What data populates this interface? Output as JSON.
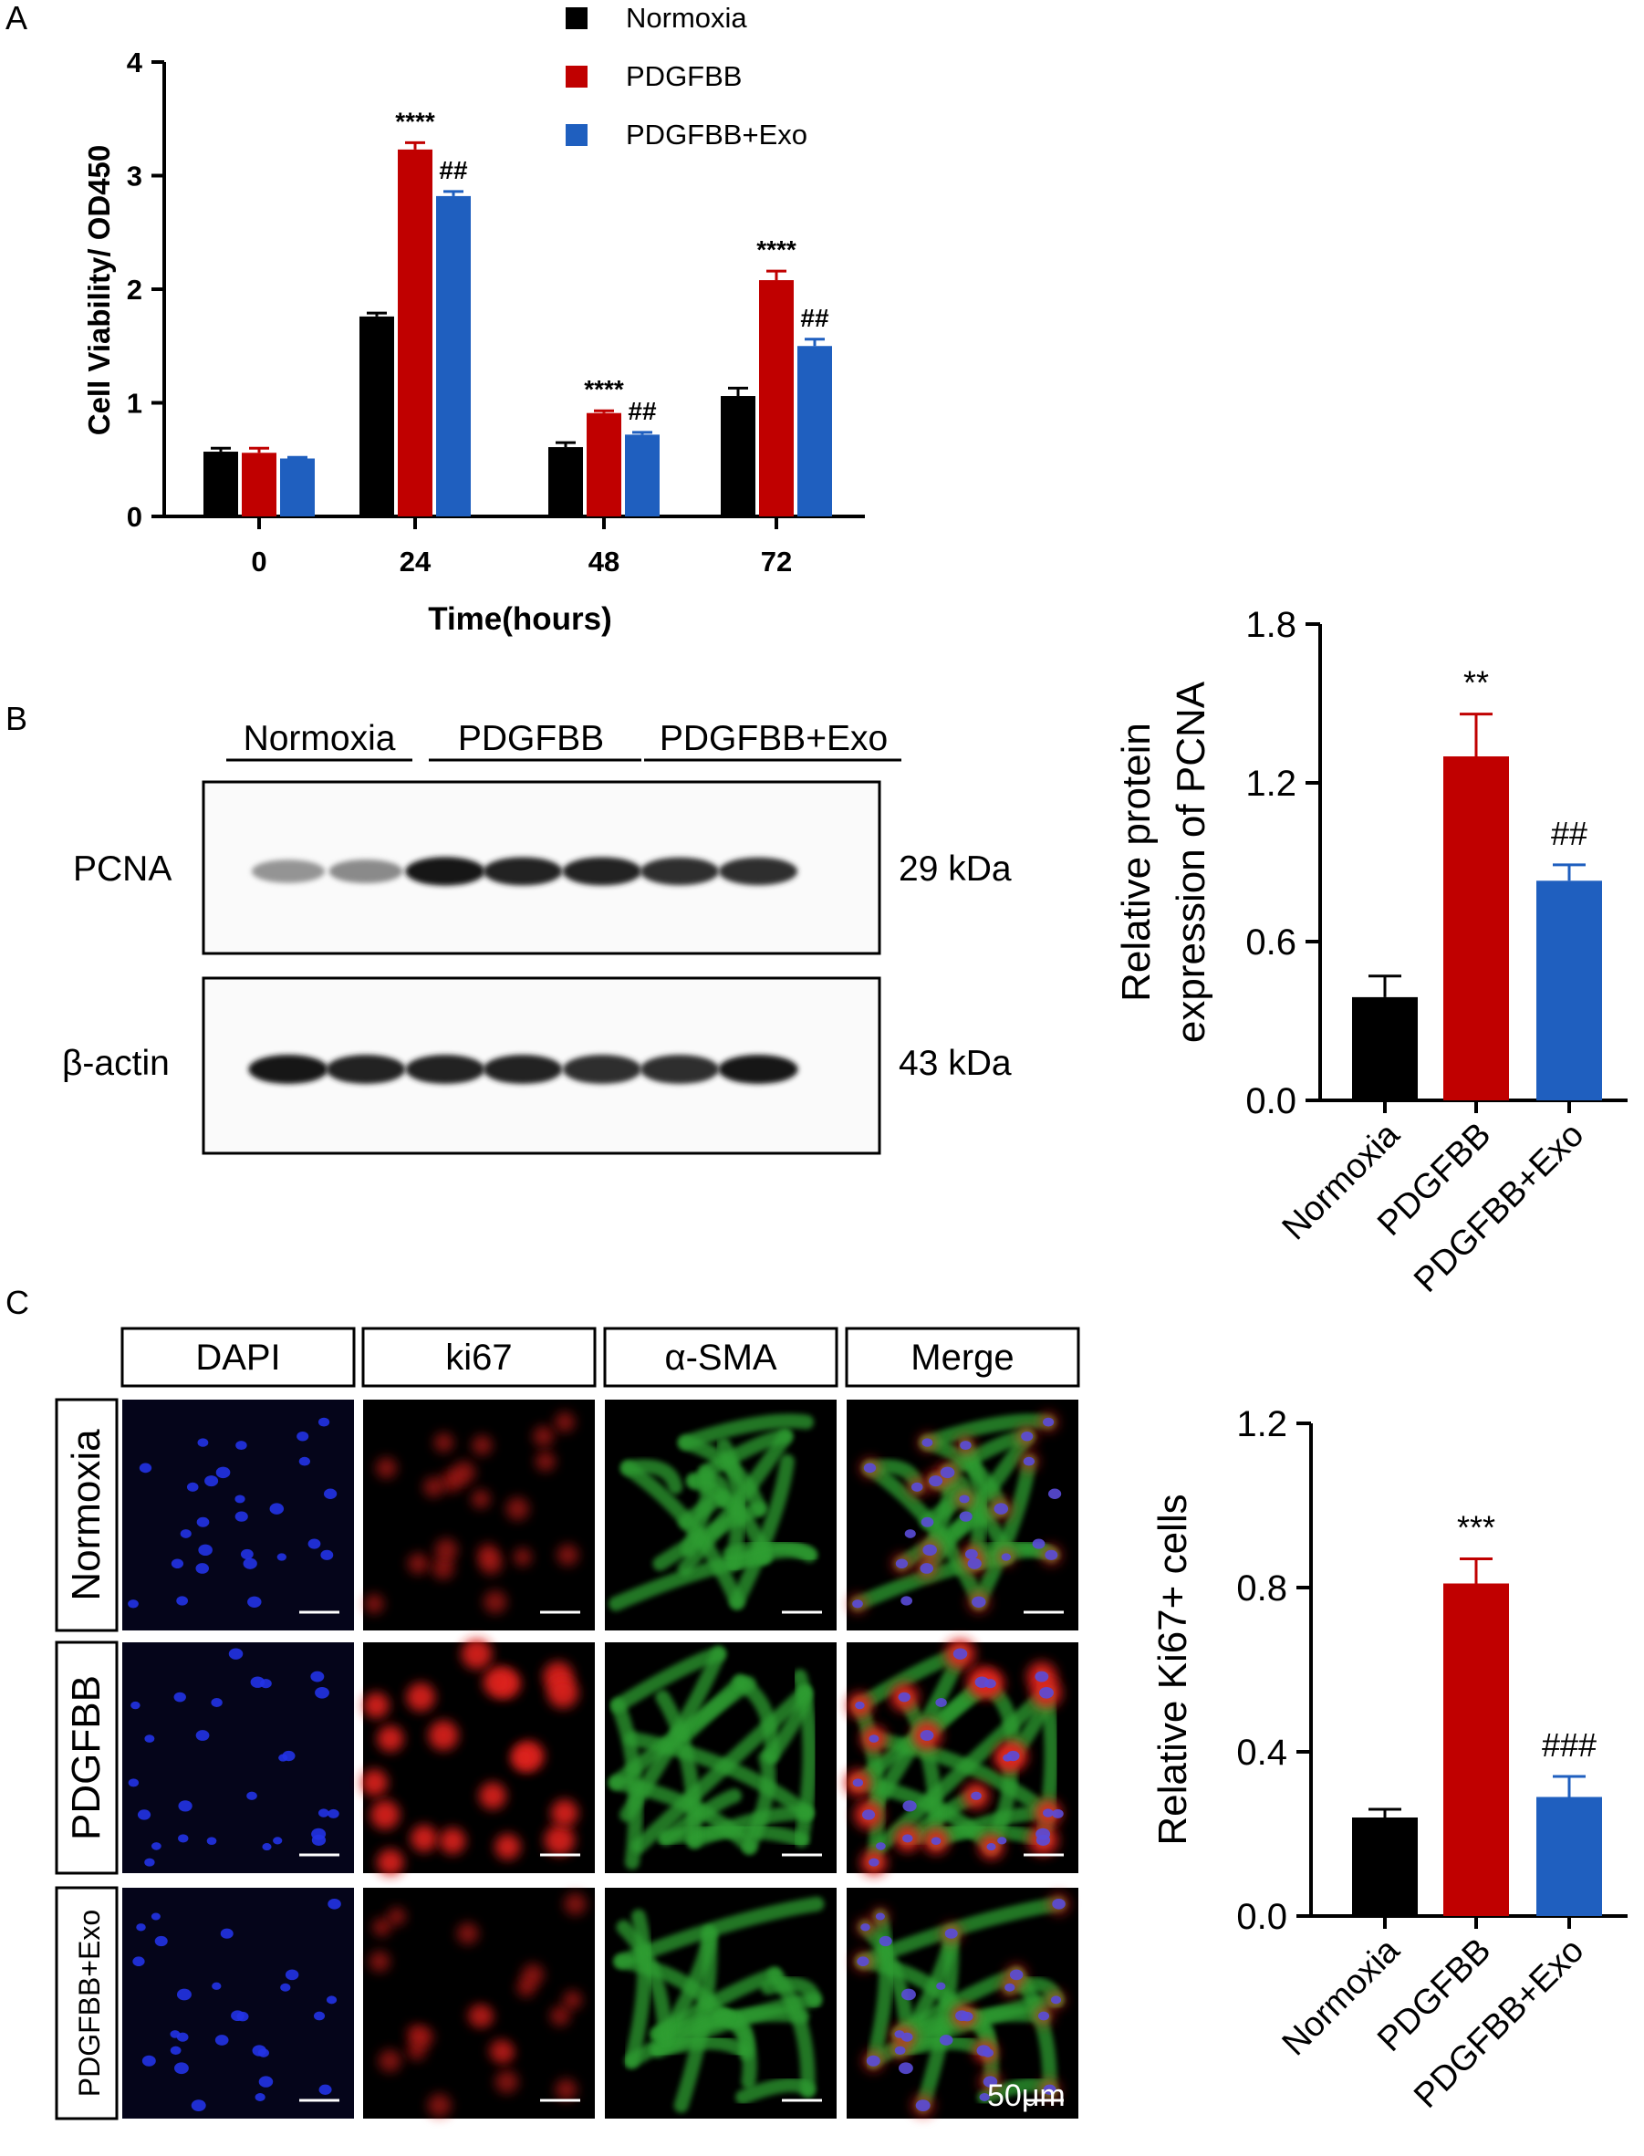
{
  "panels": {
    "a": "A",
    "b": "B",
    "c": "C"
  },
  "colors": {
    "normoxia": "#000000",
    "pdgfbb": "#C00000",
    "exo": "#1F5FBF"
  },
  "chart_data": [
    {
      "type": "bar",
      "panel": "A",
      "categories": [
        "0",
        "24",
        "48",
        "72"
      ],
      "xlabel": "Time(hours)",
      "ylabel": "Cell Viability/ OD450",
      "ylim": [
        0,
        4
      ],
      "yticks": [
        "0",
        "1",
        "2",
        "3",
        "4"
      ],
      "legend": [
        "Normoxia",
        "PDGFBB",
        "PDGFBB+Exo"
      ],
      "legend_position": "top",
      "series": [
        {
          "name": "Normoxia",
          "values": [
            0.57,
            1.76,
            0.61,
            1.06
          ],
          "errors": [
            0.03,
            0.03,
            0.04,
            0.07
          ]
        },
        {
          "name": "PDGFBB",
          "values": [
            0.56,
            3.23,
            0.91,
            2.08
          ],
          "errors": [
            0.04,
            0.06,
            0.02,
            0.08
          ]
        },
        {
          "name": "PDGFBB+Exo",
          "values": [
            0.51,
            2.82,
            0.72,
            1.5
          ],
          "errors": [
            0.01,
            0.04,
            0.02,
            0.06
          ]
        }
      ],
      "annotations": [
        {
          "series": 1,
          "category": 1,
          "text": "****"
        },
        {
          "series": 2,
          "category": 1,
          "text": "##"
        },
        {
          "series": 1,
          "category": 2,
          "text": "****"
        },
        {
          "series": 2,
          "category": 2,
          "text": "##"
        },
        {
          "series": 1,
          "category": 3,
          "text": "****"
        },
        {
          "series": 2,
          "category": 3,
          "text": "##"
        }
      ]
    },
    {
      "type": "bar",
      "panel": "B",
      "categories": [
        "Normoxia",
        "PDGFBB",
        "PDGFBB+Exo"
      ],
      "ylabel": "Relative protein expression of PCNA",
      "ylabel_lines": [
        "Relative protein",
        "expression of PCNA"
      ],
      "ylim": [
        0,
        1.8
      ],
      "yticks": [
        "0.0",
        "0.6",
        "1.2",
        "1.8"
      ],
      "values": [
        0.39,
        1.3,
        0.83
      ],
      "errors": [
        0.08,
        0.16,
        0.06
      ],
      "annotations": [
        "",
        "**",
        "##"
      ]
    },
    {
      "type": "bar",
      "panel": "C",
      "categories": [
        "Normoxia",
        "PDGFBB",
        "PDGFBB+Exo"
      ],
      "ylabel": "Relative Ki67+ cells",
      "ylim": [
        0,
        1.2
      ],
      "yticks": [
        "0.0",
        "0.4",
        "0.8",
        "1.2"
      ],
      "values": [
        0.24,
        0.81,
        0.29
      ],
      "errors": [
        0.02,
        0.06,
        0.05
      ],
      "annotations": [
        "",
        "***",
        "###"
      ]
    }
  ],
  "blot": {
    "group_labels": [
      "Normoxia",
      "PDGFBB",
      "PDGFBB+Exo"
    ],
    "rows": [
      {
        "protein": "PCNA",
        "size": "29 kDa",
        "band_intensity": [
          0.35,
          0.4,
          0.95,
          0.9,
          0.9,
          0.85,
          0.85
        ]
      },
      {
        "protein": "β-actin",
        "size": "43 kDa",
        "band_intensity": [
          0.95,
          0.9,
          0.9,
          0.9,
          0.85,
          0.85,
          0.95
        ]
      }
    ]
  },
  "micrographs": {
    "columns": [
      "DAPI",
      "ki67",
      "α-SMA",
      "Merge"
    ],
    "rows": [
      "Normoxia",
      "PDGFBB",
      "PDGFBB+Exo"
    ],
    "scale_bar": "50μm"
  }
}
